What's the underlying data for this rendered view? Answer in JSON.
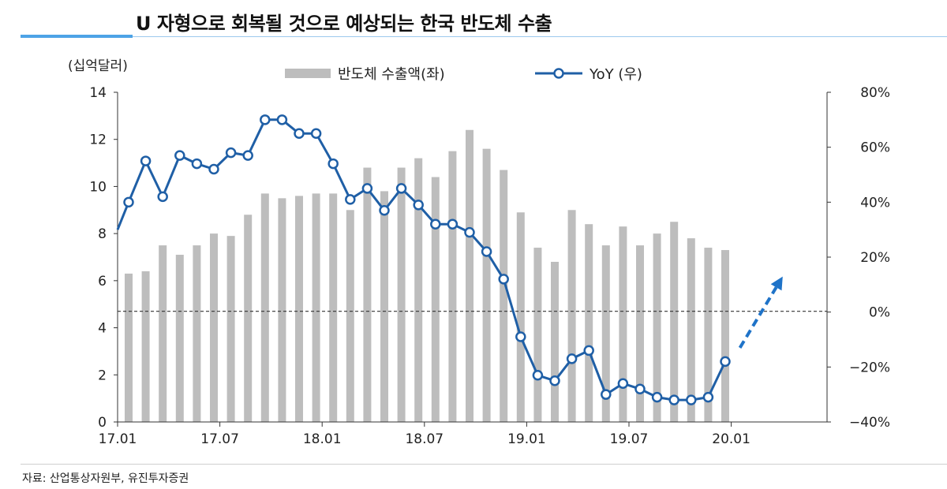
{
  "page": {
    "title": "U 자형으로 회복될 것으로 예상되는 한국 반도체 수출",
    "source": "자료: 산업통상자원부, 유진투자증권"
  },
  "chart_data": {
    "type": "bar+line",
    "y_left_label": "(십억달러)",
    "y_left_lim": [
      0,
      14
    ],
    "y_left_ticks": [
      0,
      2,
      4,
      6,
      8,
      10,
      12,
      14
    ],
    "y_right_lim": [
      -40,
      80
    ],
    "y_right_ticks": [
      "80%",
      "60%",
      "40%",
      "20%",
      "0%",
      "−20%",
      "−40%"
    ],
    "y_right_tick_values": [
      80,
      60,
      40,
      20,
      0,
      -20,
      -40
    ],
    "x_tick_labels": [
      "17.01",
      "17.07",
      "18.01",
      "18.07",
      "19.01",
      "19.07",
      "20.01"
    ],
    "months": [
      "17.01",
      "17.02",
      "17.03",
      "17.04",
      "17.05",
      "17.06",
      "17.07",
      "17.08",
      "17.09",
      "17.10",
      "17.11",
      "17.12",
      "18.01",
      "18.02",
      "18.03",
      "18.04",
      "18.05",
      "18.06",
      "18.07",
      "18.08",
      "18.09",
      "18.10",
      "18.11",
      "18.12",
      "19.01",
      "19.02",
      "19.03",
      "19.04",
      "19.05",
      "19.06",
      "19.07",
      "19.08",
      "19.09",
      "19.10",
      "19.11",
      "19.12"
    ],
    "series": [
      {
        "name": "반도체 수출액(좌)",
        "type": "bar",
        "axis": "left",
        "color": "#bdbdbd",
        "values": [
          6.3,
          6.4,
          7.5,
          7.1,
          7.5,
          8.0,
          7.9,
          8.8,
          9.7,
          9.5,
          9.6,
          9.7,
          9.7,
          9.0,
          10.8,
          9.8,
          10.8,
          11.2,
          10.4,
          11.5,
          12.4,
          11.6,
          10.7,
          8.9,
          7.4,
          6.8,
          9.0,
          8.4,
          7.5,
          8.3,
          7.5,
          8.0,
          8.5,
          7.8,
          7.4,
          7.3
        ]
      },
      {
        "name": "YoY (우)",
        "type": "line",
        "axis": "right",
        "color": "#1f5fa6",
        "values": [
          40,
          55,
          42,
          57,
          54,
          52,
          58,
          57,
          70,
          70,
          65,
          65,
          54,
          41,
          45,
          37,
          45,
          39,
          32,
          32,
          29,
          22,
          12,
          -9,
          -23,
          -25,
          -17,
          -14,
          -30,
          -26,
          -28,
          -31,
          -32,
          -32,
          -31,
          -18
        ]
      }
    ],
    "reference_line": {
      "axis": "left",
      "value": 4.7,
      "style": "dashed"
    },
    "annotation_arrow": {
      "from": [
        "20.01",
        -13
      ],
      "to": [
        "20.03",
        12
      ],
      "color": "#1f73c8",
      "style": "dashed"
    },
    "legend_position": "top-center"
  }
}
